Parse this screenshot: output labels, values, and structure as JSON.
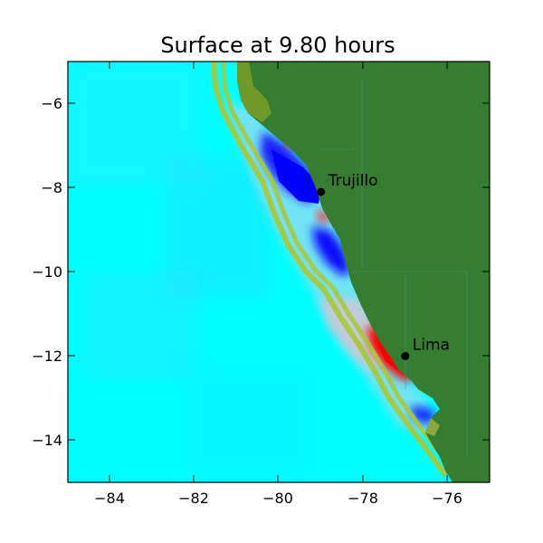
{
  "title": "Surface at 9.80 hours",
  "chart_data": {
    "type": "heatmap",
    "title": "Surface at 9.80 hours",
    "xlabel": "",
    "ylabel": "",
    "xlim": [
      -85,
      -75
    ],
    "ylim": [
      -15,
      -5
    ],
    "xticks": [
      "−84",
      "−82",
      "−80",
      "−78",
      "−76"
    ],
    "yticks": [
      "−6",
      "−8",
      "−10",
      "−12",
      "−14"
    ],
    "grid": false,
    "colors": {
      "ocean": "#00ffff",
      "land": "#367c31",
      "coastline_band": "#a8c83a",
      "trough": "#0000ff",
      "crest": "#ff0000"
    },
    "cities": [
      {
        "name": "Trujillo",
        "lon": -79.0,
        "lat": -8.1
      },
      {
        "name": "Lima",
        "lon": -77.0,
        "lat": -12.0
      }
    ]
  }
}
